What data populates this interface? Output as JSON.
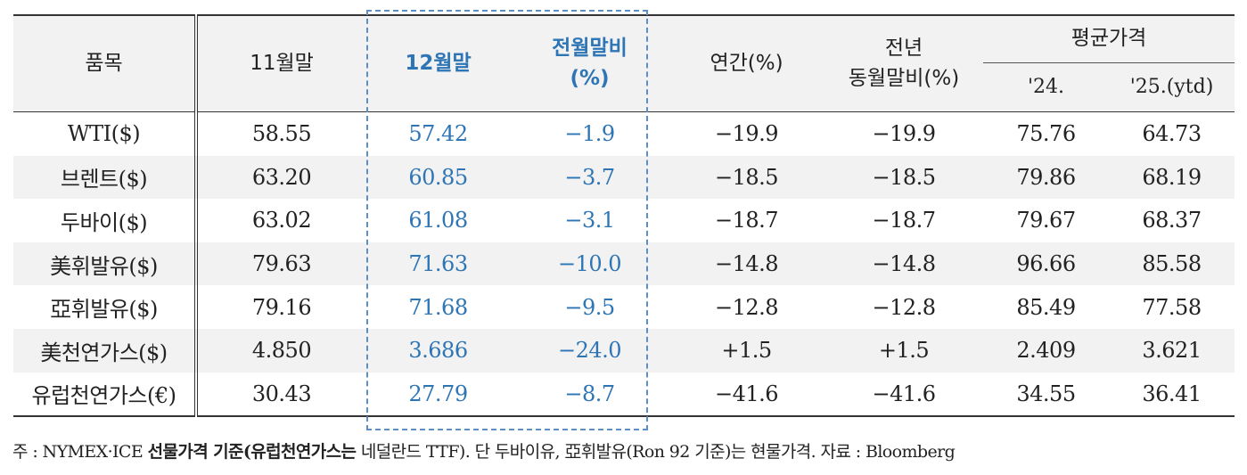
{
  "colors": {
    "accent": "#2e75b6",
    "highlight_border": "#5b8fc9",
    "stripe": "#f2f2f2"
  },
  "header": {
    "item": "품목",
    "nov_end": "11월말",
    "dec_end": "12월말",
    "mom_line1": "전월말비",
    "mom_line2": "(%)",
    "annual": "연간(%)",
    "yoy_line1": "전년",
    "yoy_line2": "동월말비(%)",
    "avg_price": "평균가격",
    "y24": "'24.",
    "y25": "'25.(ytd)"
  },
  "rows": [
    {
      "name": "WTI($)",
      "nov": "58.55",
      "dec": "57.42",
      "mom": "−1.9",
      "annual": "−19.9",
      "yoy": "−19.9",
      "avg24": "75.76",
      "avg25": "64.73"
    },
    {
      "name": "브렌트($)",
      "nov": "63.20",
      "dec": "60.85",
      "mom": "−3.7",
      "annual": "−18.5",
      "yoy": "−18.5",
      "avg24": "79.86",
      "avg25": "68.19"
    },
    {
      "name": "두바이($)",
      "nov": "63.02",
      "dec": "61.08",
      "mom": "−3.1",
      "annual": "−18.7",
      "yoy": "−18.7",
      "avg24": "79.67",
      "avg25": "68.37"
    },
    {
      "name": "美휘발유($)",
      "nov": "79.63",
      "dec": "71.63",
      "mom": "−10.0",
      "annual": "−14.8",
      "yoy": "−14.8",
      "avg24": "96.66",
      "avg25": "85.58"
    },
    {
      "name": "亞휘발유($)",
      "nov": "79.16",
      "dec": "71.68",
      "mom": "−9.5",
      "annual": "−12.8",
      "yoy": "−12.8",
      "avg24": "85.49",
      "avg25": "77.58"
    },
    {
      "name": "美천연가스($)",
      "nov": "4.850",
      "dec": "3.686",
      "mom": "−24.0",
      "annual": "+1.5",
      "yoy": "+1.5",
      "avg24": "2.409",
      "avg25": "3.621"
    },
    {
      "name": "유럽천연가스(€)",
      "nov": "30.43",
      "dec": "27.79",
      "mom": "−8.7",
      "annual": "−41.6",
      "yoy": "−41.6",
      "avg24": "34.55",
      "avg25": "36.41"
    }
  ],
  "note": {
    "prefix": "주 : NYMEX·ICE ",
    "bold1": "선물가격 기준(유럽천연가스는",
    "mid": " 네덜란드 TTF). 단 두바이유, 亞휘발유(Ron 92 기준)는 현물가격. 자료 : Bloomberg"
  }
}
